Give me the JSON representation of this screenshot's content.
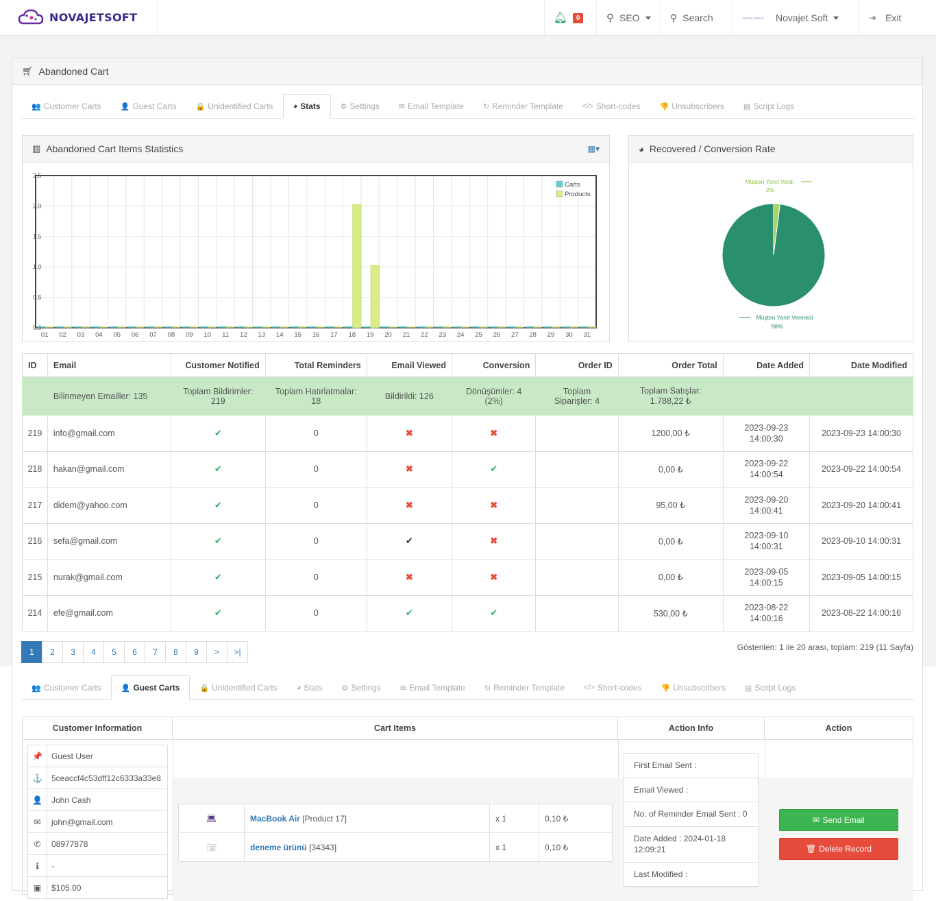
{
  "brand": {
    "name": "NOVAJETSOFT"
  },
  "topnav": {
    "notif_count": "0",
    "seo": "SEO",
    "search": "Search",
    "user": "Novajet Soft",
    "exit": "Exit",
    "user_logo_text": "DIGITAL MEDYA"
  },
  "panel": {
    "title": "Abandoned Cart"
  },
  "tabs": [
    "Customer Carts",
    "Guest Carts",
    "Unidentified Carts",
    "Stats",
    "Settings",
    "Email Template",
    "Reminder Template",
    "Short-codes",
    "Unsubscribers",
    "Script Logs"
  ],
  "tab_icons": [
    "users-icon",
    "user-icon",
    "lock-icon",
    "pie-chart-icon",
    "cogs-icon",
    "envelope-icon",
    "refresh-icon",
    "code-icon",
    "thumbs-down-icon",
    "book-icon"
  ],
  "tab_glyphs": [
    "👥",
    "👤",
    "🔒",
    "◕",
    "⚙",
    "✉",
    "↻",
    "</>",
    "👎",
    "▤"
  ],
  "stats_box": {
    "title": "Abandoned Cart Items Statistics"
  },
  "rate_box": {
    "title": "Recovered / Conversion Rate"
  },
  "chart_data": [
    {
      "type": "bar",
      "title": "",
      "categories": [
        "01",
        "02",
        "03",
        "04",
        "05",
        "06",
        "07",
        "08",
        "09",
        "10",
        "11",
        "12",
        "13",
        "14",
        "15",
        "16",
        "17",
        "18",
        "19",
        "20",
        "21",
        "22",
        "23",
        "24",
        "25",
        "26",
        "27",
        "28",
        "29",
        "30",
        "31"
      ],
      "series": [
        {
          "name": "Carts",
          "color": "#5bd2d2",
          "values": [
            0,
            0,
            0,
            0,
            0,
            0,
            0,
            0,
            0,
            0,
            0,
            0,
            0,
            0,
            0,
            0,
            0,
            0,
            0,
            0,
            0,
            0,
            0,
            0,
            0,
            0,
            0,
            0,
            0,
            0,
            0
          ]
        },
        {
          "name": "Products",
          "color": "#d9ec8a",
          "values": [
            0,
            0,
            0,
            0,
            0,
            0,
            0,
            0,
            0,
            0,
            0,
            0,
            0,
            0,
            0,
            0,
            0,
            2,
            1,
            0,
            0,
            0,
            0,
            0,
            0,
            0,
            0,
            0,
            0,
            0,
            0
          ]
        }
      ],
      "ylim": [
        0,
        2.5
      ],
      "yticks": [
        "2.5",
        "2.0",
        "1.5",
        "1.0",
        "0.5",
        "0.0"
      ],
      "grid": true,
      "legend": "top-right"
    },
    {
      "type": "pie",
      "title": "",
      "slices": [
        {
          "label": "Müşteri Yanıt Verdi",
          "value": 2,
          "pct": "2%",
          "color": "#a6d36a"
        },
        {
          "label": "Müşteri Yanıt Vermedi",
          "value": 98,
          "pct": "98%",
          "color": "#2a8f6e"
        }
      ]
    }
  ],
  "table": {
    "headers": [
      "ID",
      "Email",
      "Customer Notified",
      "Total Reminders",
      "Email Viewed",
      "Conversion",
      "Order ID",
      "Order Total",
      "Date Added",
      "Date Modified"
    ],
    "summary": {
      "unknown": "Bilinmeyen Emailler: 135",
      "notified": "Toplam Bildirimler: 219",
      "reminders": "Toplam Hatırlatmalar: 18",
      "viewed": "Bildirildi: 126",
      "conversions": "Dönüşümler: 4 (2%)",
      "orders": "Toplam Siparişler: 4",
      "sales": "Toplam Satışlar: 1.788,22 ₺"
    },
    "rows": [
      {
        "id": "219",
        "email": "info@gmail.com",
        "reminders": "0",
        "viewed": "no",
        "conv": "no",
        "total": "1200,00 ₺",
        "added": "2023-09-23 14:00:30",
        "modified": "2023-09-23 14:00:30"
      },
      {
        "id": "218",
        "email": "hakan@gmail.com",
        "reminders": "0",
        "viewed": "no",
        "conv": "ok",
        "total": "0,00 ₺",
        "added": "2023-09-22 14:00:54",
        "modified": "2023-09-22 14:00:54"
      },
      {
        "id": "217",
        "email": "didem@yahoo.com",
        "reminders": "0",
        "viewed": "no",
        "conv": "no",
        "total": "95,00 ₺",
        "added": "2023-09-20 14:00:41",
        "modified": "2023-09-20 14:00:41"
      },
      {
        "id": "216",
        "email": "sefa@gmail.com",
        "reminders": "0",
        "viewed": "dk",
        "conv": "no",
        "total": "0,00 ₺",
        "added": "2023-09-10 14:00:31",
        "modified": "2023-09-10 14:00:31"
      },
      {
        "id": "215",
        "email": "nurak@gmail.com",
        "reminders": "0",
        "viewed": "no",
        "conv": "no",
        "total": "0,00 ₺",
        "added": "2023-09-05 14:00:15",
        "modified": "2023-09-05 14:00:15"
      },
      {
        "id": "214",
        "email": "efe@gmail.com",
        "reminders": "0",
        "viewed": "ok",
        "conv": "ok",
        "total": "530,00 ₺",
        "added": "2023-08-22 14:00:16",
        "modified": "2023-08-22 14:00:16"
      }
    ]
  },
  "pager": {
    "pages": [
      "1",
      "2",
      "3",
      "4",
      "5",
      "6",
      "7",
      "8",
      "9",
      ">",
      ">|"
    ],
    "showing": "Gösterilen: 1 ile 20 arası, toplam: 219 (11 Sayfa)"
  },
  "guest": {
    "headers": [
      "Customer Information",
      "Cart Items",
      "Action Info",
      "Action"
    ],
    "customer": [
      {
        "icon": "pin-icon",
        "glyph": "📌",
        "value": "Guest User"
      },
      {
        "icon": "anchor-icon",
        "glyph": "⚓",
        "value": "5ceaccf4c53dff12c6333a33e8"
      },
      {
        "icon": "user-icon",
        "glyph": "👤",
        "value": "John Cash"
      },
      {
        "icon": "envelope-icon",
        "glyph": "✉",
        "value": "john@gmail.com"
      },
      {
        "icon": "phone-icon",
        "glyph": "✆",
        "value": "08977878"
      },
      {
        "icon": "info-icon",
        "glyph": "ℹ",
        "value": "-"
      },
      {
        "icon": "money-icon",
        "glyph": "▣",
        "value": "$105.00"
      }
    ],
    "items": [
      {
        "name": "MacBook Air",
        "ref": "[Product 17]",
        "qty": "x 1",
        "price": "0,10 ₺"
      },
      {
        "name": "deneme ürünü",
        "ref": "[34343]",
        "qty": "x 1",
        "price": "0,10 ₺"
      }
    ],
    "action_info": [
      "First Email Sent :",
      "Email Viewed :",
      "No. of Reminder Email Sent : 0",
      "Date Added : 2024-01-18 12:09:21",
      "Last Modified :"
    ],
    "send": "Send Email",
    "delete": "Delete Record"
  }
}
